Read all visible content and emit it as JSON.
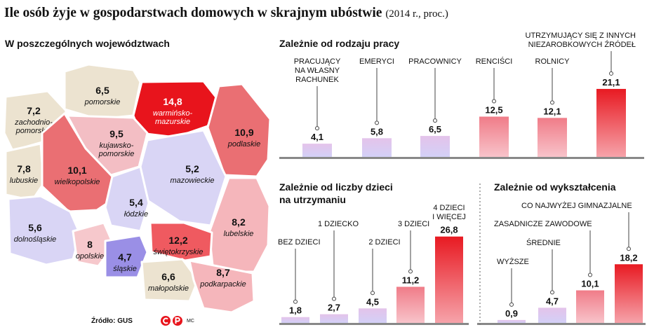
{
  "title": "Ile osób żyje w gospodarstwach domowych w skrajnym ubóstwie",
  "subtitle": "(2014 r., proc.)",
  "source": "Źródło: GUS",
  "credit": "MC",
  "colors": {
    "red": "#e8141c",
    "pink": "#f0a0a6",
    "lilac": "#d9d5f5",
    "beige": "#ece3d0",
    "purple": "#9a8fe6"
  },
  "chart_data": [
    {
      "type": "map",
      "title": "W poszczególnych województwach",
      "regions": [
        {
          "name": "pomorskie",
          "value": "6,5"
        },
        {
          "name": "warmińsko-\nmazurskie",
          "value": "14,8"
        },
        {
          "name": "zachodnio-\npomorskie",
          "value": "7,2"
        },
        {
          "name": "podlaskie",
          "value": "10,9"
        },
        {
          "name": "kujawsko-\npomorskie",
          "value": "9,5"
        },
        {
          "name": "lubuskie",
          "value": "7,8"
        },
        {
          "name": "wielkopolskie",
          "value": "10,1"
        },
        {
          "name": "mazowieckie",
          "value": "5,2"
        },
        {
          "name": "łódzkie",
          "value": "5,4"
        },
        {
          "name": "dolnośląskie",
          "value": "5,6"
        },
        {
          "name": "lubelskie",
          "value": "8,2"
        },
        {
          "name": "opolskie",
          "value": "8"
        },
        {
          "name": "świętokrzyskie",
          "value": "12,2"
        },
        {
          "name": "śląskie",
          "value": "4,7"
        },
        {
          "name": "małopolskie",
          "value": "6,6"
        },
        {
          "name": "podkarpackie",
          "value": "8,7"
        }
      ]
    },
    {
      "type": "bar",
      "title": "Zależnie od rodzaju pracy",
      "categories": [
        "PRACUJĄCY\nNA WŁASNY\nRACHUNEK",
        "EMERYCI",
        "PRACOWNICY",
        "RENCIŚCI",
        "ROLNICY",
        "UTRZYMUJĄCY SIĘ Z INNYCH\nNIEZAROBKOWYCH ŹRÓDEŁ"
      ],
      "values": [
        4.1,
        5.8,
        6.5,
        12.5,
        12.1,
        21.1
      ],
      "labels": [
        "4,1",
        "5,8",
        "6,5",
        "12,5",
        "12,1",
        "21,1"
      ]
    },
    {
      "type": "bar",
      "title": "Zależnie od liczby dzieci\nna utrzymaniu",
      "categories": [
        "BEZ DZIECI",
        "1 DZIECKO",
        "2 DZIECI",
        "3 DZIECI",
        "4 DZIECI\nI WIĘCEJ"
      ],
      "values": [
        1.8,
        2.7,
        4.5,
        11.2,
        26.8
      ],
      "labels": [
        "1,8",
        "2,7",
        "4,5",
        "11,2",
        "26,8"
      ]
    },
    {
      "type": "bar",
      "title": "Zależnie od wykształcenia",
      "categories": [
        "WYŻSZE",
        "ŚREDNIE",
        "ZASADNICZE ZAWODOWE",
        "CO NAJWYŻEJ GIMNAZJALNE"
      ],
      "values": [
        0.9,
        4.7,
        10.1,
        18.2
      ],
      "labels": [
        "0,9",
        "4,7",
        "10,1",
        "18,2"
      ]
    }
  ]
}
